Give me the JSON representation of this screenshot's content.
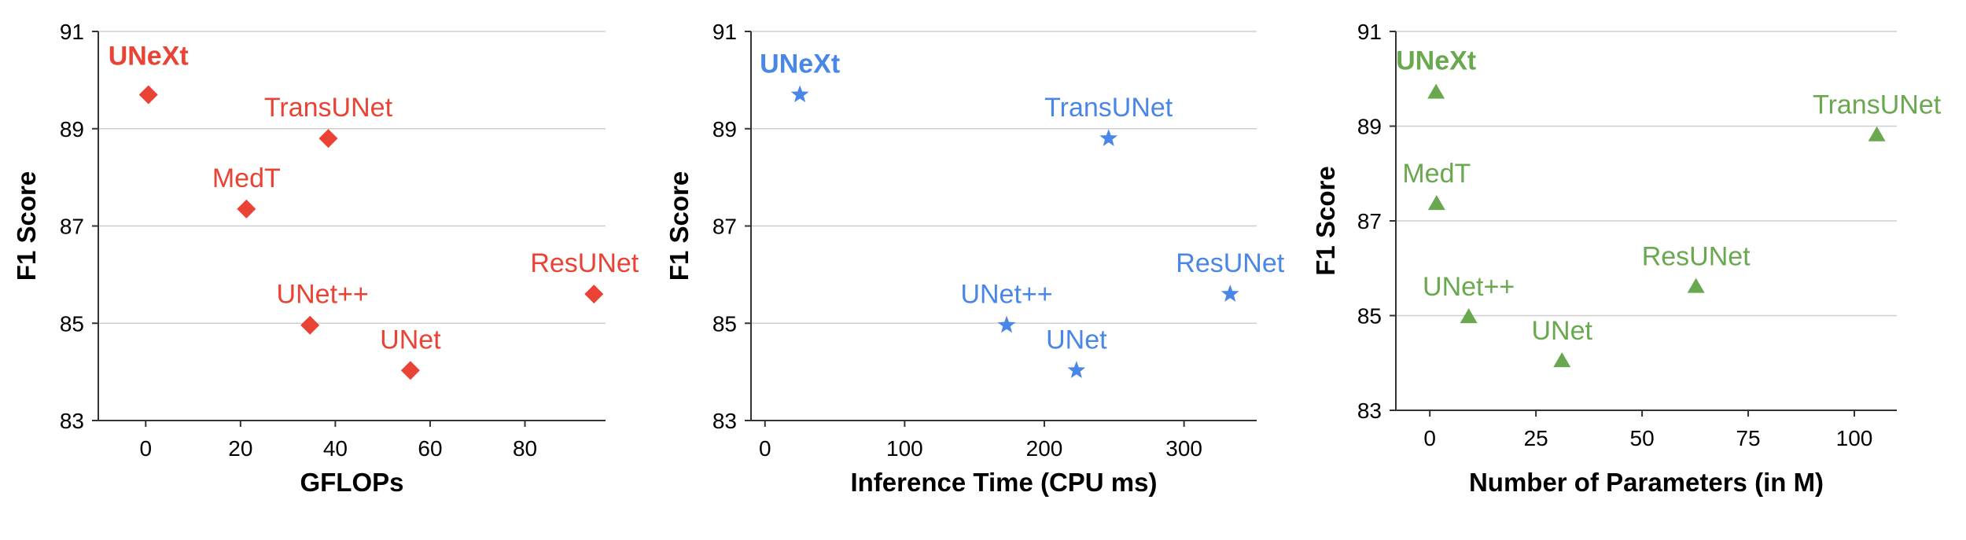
{
  "chart_data": [
    {
      "type": "scatter",
      "marker": "diamond",
      "color": "#ea4335",
      "xlabel": "GFLOPs",
      "ylabel": "F1 Score",
      "xlim": [
        -10,
        97
      ],
      "ylim": [
        83,
        91
      ],
      "xticks": [
        0,
        20,
        40,
        60,
        80
      ],
      "yticks": [
        83,
        85,
        87,
        89,
        91
      ],
      "grid": "horizontal",
      "points": [
        {
          "label": "UNeXt",
          "x": 0.57,
          "y": 89.7,
          "bold": true
        },
        {
          "label": "TransUNet",
          "x": 38.52,
          "y": 88.8,
          "bold": false
        },
        {
          "label": "MedT",
          "x": 21.24,
          "y": 87.35,
          "bold": false
        },
        {
          "label": "ResUNet",
          "x": 94.56,
          "y": 85.6,
          "bold": false
        },
        {
          "label": "UNet++",
          "x": 34.65,
          "y": 84.96,
          "bold": false
        },
        {
          "label": "UNet",
          "x": 55.84,
          "y": 84.03,
          "bold": false
        }
      ]
    },
    {
      "type": "scatter",
      "marker": "star",
      "color": "#4a86e8",
      "xlabel": "Inference Time (CPU ms)",
      "ylabel": "F1 Score",
      "xlim": [
        -10,
        352
      ],
      "ylim": [
        83,
        91
      ],
      "xticks": [
        0,
        100,
        200,
        300
      ],
      "yticks": [
        83,
        85,
        87,
        89,
        91
      ],
      "grid": "horizontal",
      "points": [
        {
          "label": "UNeXt",
          "x": 25,
          "y": 89.7,
          "bold": true
        },
        {
          "label": "TransUNet",
          "x": 246,
          "y": 88.8,
          "bold": false
        },
        {
          "label": "ResUNet",
          "x": 333,
          "y": 85.6,
          "bold": false
        },
        {
          "label": "UNet++",
          "x": 173,
          "y": 84.96,
          "bold": false
        },
        {
          "label": "UNet",
          "x": 223,
          "y": 84.03,
          "bold": false
        }
      ]
    },
    {
      "type": "scatter",
      "marker": "triangle",
      "color": "#6aa84f",
      "xlabel": "Number of Parameters (in M)",
      "ylabel": "F1 Score",
      "xlim": [
        -8,
        110
      ],
      "ylim": [
        83,
        91
      ],
      "xticks": [
        0,
        25,
        50,
        75,
        100
      ],
      "yticks": [
        83,
        85,
        87,
        89,
        91
      ],
      "grid": "horizontal",
      "points": [
        {
          "label": "UNeXt",
          "x": 1.47,
          "y": 89.7,
          "bold": true
        },
        {
          "label": "TransUNet",
          "x": 105.3,
          "y": 88.8,
          "bold": false
        },
        {
          "label": "MedT",
          "x": 1.6,
          "y": 87.35,
          "bold": false
        },
        {
          "label": "ResUNet",
          "x": 62.7,
          "y": 85.6,
          "bold": false
        },
        {
          "label": "UNet++",
          "x": 9.16,
          "y": 84.96,
          "bold": false
        },
        {
          "label": "UNet",
          "x": 31.13,
          "y": 84.03,
          "bold": false
        }
      ]
    }
  ]
}
